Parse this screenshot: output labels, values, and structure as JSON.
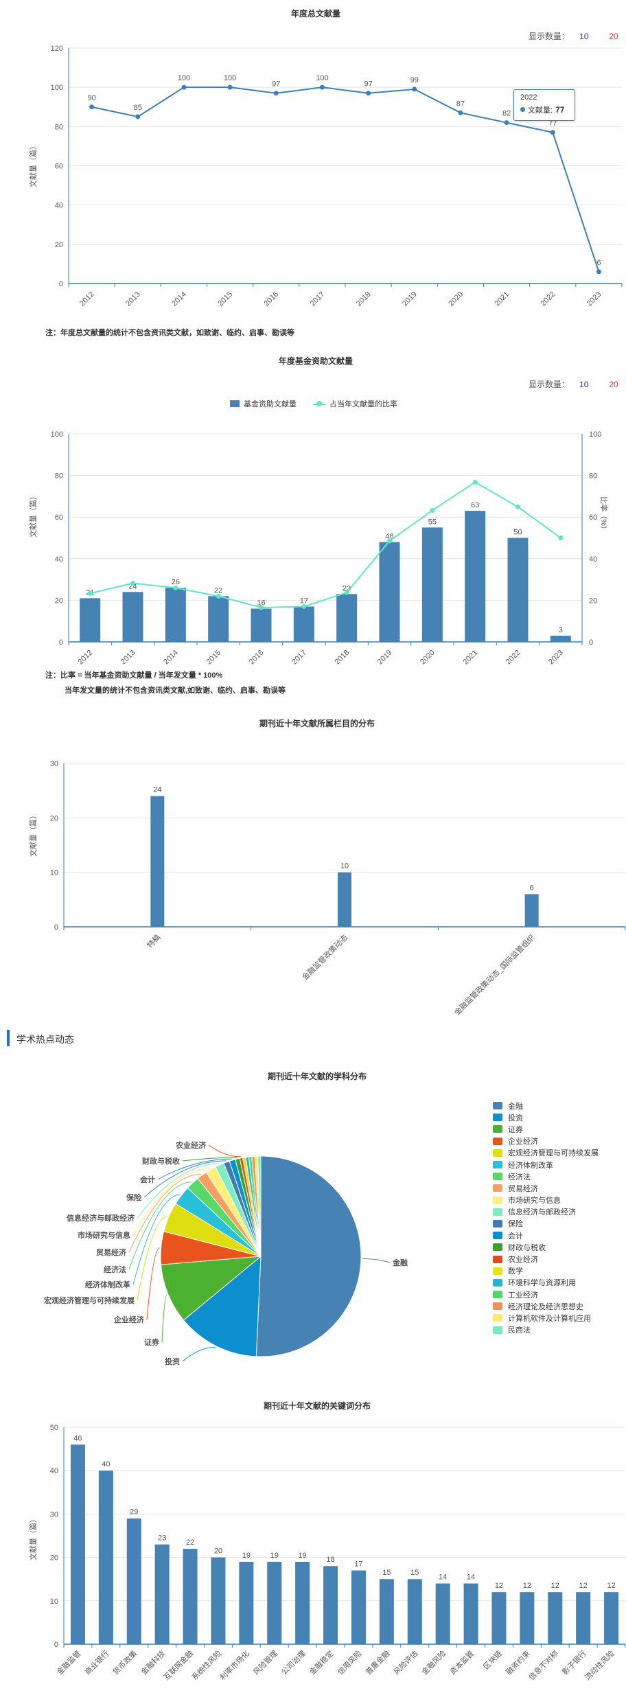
{
  "count_switch": {
    "label": "显示数量：",
    "opt10": "10",
    "opt20": "20"
  },
  "section": {
    "title": "学术热点动态"
  },
  "colors": {
    "bar": "#4682b4",
    "line": "#3b7fb6",
    "ratio_line": "#5fe6c4",
    "accent": "#1e6fd9"
  },
  "tooltip": {
    "year": "2022",
    "label": "文献量:",
    "value": "77"
  },
  "notes": {
    "annual": "注：年度总文献量的统计不包含资讯类文献，如致谢、临约、启事、勘误等",
    "fund_line1": "注：比率 = 当年基金资助文献量 / 当年发文量 * 100%",
    "fund_line2": "当年发文量的统计不包含资讯类文献,如致谢、临约、启事、勘误等"
  },
  "chart_data": [
    {
      "type": "line",
      "title": "年度总文献量",
      "ylabel": "文献量（篇）",
      "ylim": [
        0,
        120
      ],
      "yticks": [
        0,
        20,
        40,
        60,
        80,
        100,
        120
      ],
      "x": [
        "2012",
        "2013",
        "2014",
        "2015",
        "2016",
        "2017",
        "2018",
        "2019",
        "2020",
        "2021",
        "2022",
        "2023"
      ],
      "values": [
        90,
        85,
        100,
        100,
        97,
        100,
        97,
        99,
        87,
        82,
        77,
        6
      ]
    },
    {
      "type": "bar",
      "title": "年度基金资助文献量",
      "ylabel": "文献量（篇）",
      "y2label": "比率（%）",
      "ylim": [
        0,
        100
      ],
      "yticks": [
        0,
        20,
        40,
        60,
        80,
        100
      ],
      "categories": [
        "2012",
        "2013",
        "2014",
        "2015",
        "2016",
        "2017",
        "2018",
        "2019",
        "2020",
        "2021",
        "2022",
        "2023"
      ],
      "series": [
        {
          "name": "基金资助文献量",
          "values": [
            21,
            24,
            26,
            22,
            16,
            17,
            23,
            48,
            55,
            63,
            50,
            3
          ]
        },
        {
          "name": "占当年文献量的比率",
          "values": [
            23.3,
            28.2,
            26.0,
            22.0,
            16.5,
            17.0,
            23.7,
            48.5,
            63.2,
            76.8,
            64.9,
            50.0
          ]
        }
      ],
      "legend": "top-center"
    },
    {
      "type": "bar",
      "title": "期刊近十年文献所属栏目的分布",
      "ylabel": "文献量（篇）",
      "ylim": [
        0,
        30
      ],
      "yticks": [
        0,
        10,
        20,
        30
      ],
      "categories": [
        "特稿",
        "金融监管政策动态",
        "金融监管政策动态_国际监管组织"
      ],
      "values": [
        24,
        10,
        6
      ]
    },
    {
      "type": "pie",
      "title": "期刊近十年文献的学科分布",
      "legend": "right",
      "slices": [
        {
          "label": "金融",
          "value": 210,
          "color": "#4682b4"
        },
        {
          "label": "投资",
          "value": 55,
          "color": "#0d8ecf"
        },
        {
          "label": "证券",
          "value": 40,
          "color": "#4cb030"
        },
        {
          "label": "企业经济",
          "value": 22,
          "color": "#e8541c"
        },
        {
          "label": "宏观经济管理与可持续发展",
          "value": 20,
          "color": "#dede10"
        },
        {
          "label": "经济体制改革",
          "value": 13,
          "color": "#28c0d8"
        },
        {
          "label": "经济法",
          "value": 9,
          "color": "#58d868"
        },
        {
          "label": "贸易经济",
          "value": 7,
          "color": "#f5a060"
        },
        {
          "label": "市场研究与信息",
          "value": 7,
          "color": "#fff07a"
        },
        {
          "label": "信息经济与邮政经济",
          "value": 6,
          "color": "#80ecc4"
        },
        {
          "label": "保险",
          "value": 4,
          "color": "#3f7cb4"
        },
        {
          "label": "会计",
          "value": 4,
          "color": "#0b8fce"
        },
        {
          "label": "财政与税收",
          "value": 3,
          "color": "#3ca030"
        },
        {
          "label": "农业经济",
          "value": 2,
          "color": "#e24a1a"
        },
        {
          "label": "数学",
          "value": 2,
          "color": "#e6e614"
        },
        {
          "label": "环境科学与资源利用",
          "value": 2,
          "color": "#22b8d2"
        },
        {
          "label": "工业经济",
          "value": 2,
          "color": "#56d66a"
        },
        {
          "label": "经济理论及经济思想史",
          "value": 2,
          "color": "#f39058"
        },
        {
          "label": "计算机软件及计算机应用",
          "value": 2,
          "color": "#fde878"
        },
        {
          "label": "民商法",
          "value": 2,
          "color": "#76eac0"
        }
      ],
      "outer_labels": [
        "金融",
        "投资",
        "证券",
        "企业经济",
        "宏观经济管理与可持续发展",
        "经济体制改革",
        "经济法",
        "贸易经济",
        "市场研究与信息",
        "信息经济与邮政经济",
        "保险",
        "会计",
        "财政与税收",
        "农业经济"
      ]
    },
    {
      "type": "bar",
      "title": "期刊近十年文献的关键词分布",
      "ylabel": "文献量（篇）",
      "ylim": [
        0,
        50
      ],
      "yticks": [
        0,
        10,
        20,
        30,
        40,
        50
      ],
      "categories": [
        "金融监管",
        "商业银行",
        "货币政策",
        "金融科技",
        "互联网金融",
        "系统性风险",
        "利率市场化",
        "风险管理",
        "公司治理",
        "金融稳定",
        "信用风险",
        "普惠金融",
        "风险评估",
        "金融风险",
        "资本监管",
        "区块链",
        "融资约束",
        "信息不对称",
        "影子银行",
        "流动性风险"
      ],
      "values": [
        46,
        40,
        29,
        23,
        22,
        20,
        19,
        19,
        19,
        18,
        17,
        15,
        15,
        14,
        14,
        12,
        12,
        12,
        12,
        12
      ]
    }
  ]
}
